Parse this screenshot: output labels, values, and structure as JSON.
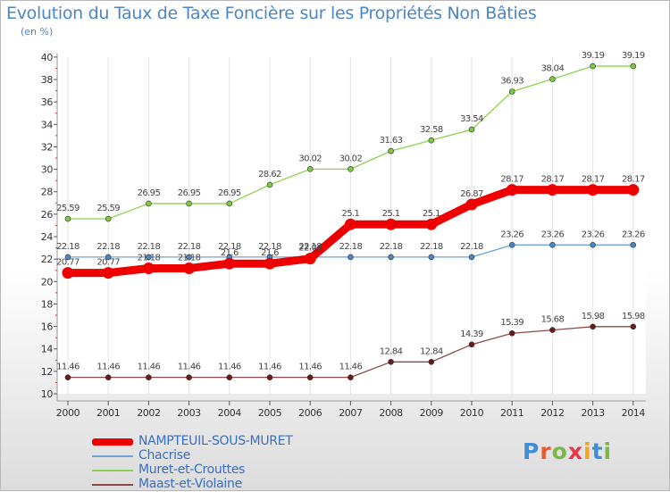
{
  "title": "Evolution du Taux de Taxe Foncière sur les Propriétés Non Bâties",
  "unit": "(en %)",
  "logo": {
    "text": "Proxiti",
    "colors": [
      "#3d8fd6",
      "#e85a2a",
      "#7ab648",
      "#e63946",
      "#f2a51a",
      "#3d8fd6",
      "#7ab648"
    ]
  },
  "chart_data": {
    "type": "line",
    "title": "Evolution du Taux de Taxe Foncière sur les Propriétés Non Bâties",
    "ylabel": "(en %)",
    "ylim": [
      10,
      40
    ],
    "yticks": [
      10,
      12,
      14,
      16,
      18,
      20,
      22,
      24,
      26,
      28,
      30,
      32,
      34,
      36,
      38,
      40
    ],
    "x": [
      "2000",
      "2001",
      "2002",
      "2003",
      "2004",
      "2005",
      "2006",
      "2007",
      "2008",
      "2009",
      "2010",
      "2011",
      "2012",
      "2013",
      "2014"
    ],
    "series": [
      {
        "name": "Muret-et-Crouttes",
        "color": "#8fd14f",
        "dot": "#7ac943",
        "thick": false,
        "values": [
          25.59,
          25.59,
          26.95,
          26.95,
          26.95,
          28.62,
          30.02,
          30.02,
          31.63,
          32.58,
          33.54,
          36.93,
          38.04,
          39.19,
          39.19
        ],
        "labels": [
          "25.59",
          "25.59",
          "26.95",
          "26.95",
          "26.95",
          "28.62",
          "30.02",
          "30.02",
          "31.63",
          "32.58",
          "33.54",
          "36.93",
          "38.04",
          "39.19",
          "39.19"
        ]
      },
      {
        "name": "Chacrise",
        "color": "#6fa3d6",
        "dot": "#4a86c6",
        "thick": false,
        "values": [
          22.18,
          22.18,
          22.18,
          22.18,
          22.18,
          22.18,
          22.18,
          22.18,
          22.18,
          22.18,
          22.18,
          23.26,
          23.26,
          23.26,
          23.26
        ],
        "labels": [
          "22.18",
          "22.18",
          "22.18",
          "22.18",
          "22.18",
          "22.18",
          "22.18",
          "22.18",
          "22.18",
          "22.18",
          "22.18",
          "23.26",
          "23.26",
          "23.26",
          "23.26"
        ]
      },
      {
        "name": "NAMPTEUIL-SOUS-MURET",
        "color": "#ee0000",
        "dot": "#ee0000",
        "thick": true,
        "values": [
          20.77,
          20.77,
          21.18,
          21.18,
          21.6,
          21.6,
          22.04,
          25.1,
          25.1,
          25.1,
          26.87,
          28.17,
          28.17,
          28.17,
          28.17
        ],
        "labels": [
          "20.77",
          "20.77",
          "21.18",
          "21.18",
          "21.6",
          "21.6",
          "22.04",
          "25.1",
          "25.1",
          "25.1",
          "26.87",
          "28.17",
          "28.17",
          "28.17",
          "28.17"
        ]
      },
      {
        "name": "Maast-et-Violaine",
        "color": "#8b4a4a",
        "dot": "#6b1a1a",
        "thick": false,
        "values": [
          11.46,
          11.46,
          11.46,
          11.46,
          11.46,
          11.46,
          11.46,
          11.46,
          12.84,
          12.84,
          14.39,
          15.39,
          15.68,
          15.98,
          15.98
        ],
        "labels": [
          "11.46",
          "11.46",
          "11.46",
          "11.46",
          "11.46",
          "11.46",
          "11.46",
          "11.46",
          "12.84",
          "12.84",
          "14.39",
          "15.39",
          "15.68",
          "15.98",
          "15.98"
        ]
      }
    ],
    "legend": [
      {
        "name": "NAMPTEUIL-SOUS-MURET",
        "color": "#ee0000",
        "thick": true
      },
      {
        "name": "Chacrise",
        "color": "#6fa3d6",
        "thick": false
      },
      {
        "name": "Muret-et-Crouttes",
        "color": "#8fd14f",
        "thick": false
      },
      {
        "name": "Maast-et-Violaine",
        "color": "#8b4a4a",
        "thick": false
      }
    ]
  }
}
